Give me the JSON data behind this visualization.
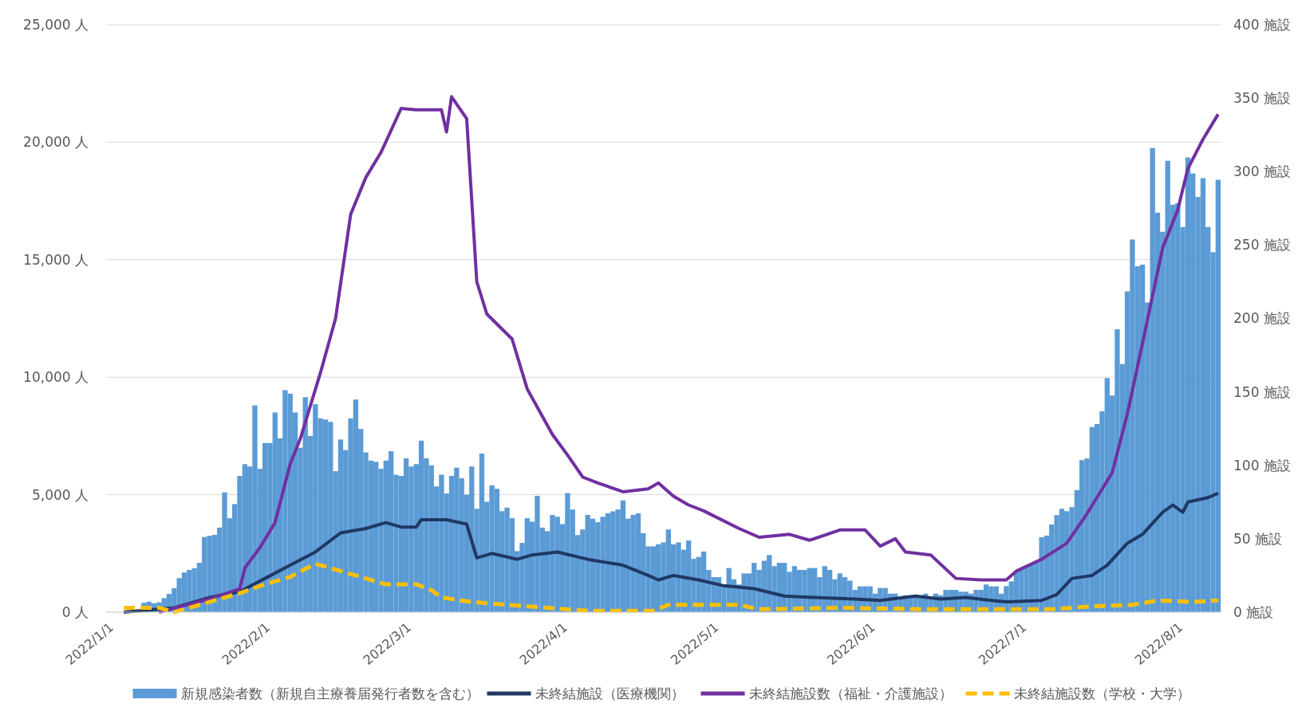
{
  "chart_data": {
    "type": "bar",
    "grid": "y",
    "legend": "bottom",
    "xlim": [
      "2021-12-31T12:00",
      "2022-08-09T12:00"
    ],
    "xticks": [
      {
        "value": "2022-01-01",
        "label": "2022/1/1"
      },
      {
        "value": "2022-02-01",
        "label": "2022/2/1"
      },
      {
        "value": "2022-03-01",
        "label": "2022/3/1"
      },
      {
        "value": "2022-04-01",
        "label": "2022/4/1"
      },
      {
        "value": "2022-05-01",
        "label": "2022/5/1"
      },
      {
        "value": "2022-06-01",
        "label": "2022/6/1"
      },
      {
        "value": "2022-07-01",
        "label": "2022/7/1"
      },
      {
        "value": "2022-08-01",
        "label": "2022/8/1"
      }
    ],
    "ylim": [
      0,
      25000
    ],
    "yticks": [
      {
        "value": 0,
        "label": "0 人"
      },
      {
        "value": 5000,
        "label": "5,000 人"
      },
      {
        "value": 10000,
        "label": "10,000 人"
      },
      {
        "value": 15000,
        "label": "15,000 人"
      },
      {
        "value": 20000,
        "label": "20,000 人"
      },
      {
        "value": 25000,
        "label": "25,000 人"
      }
    ],
    "y2lim": [
      0,
      400
    ],
    "y2ticks": [
      {
        "value": 0,
        "label": "0 施設"
      },
      {
        "value": 50,
        "label": "50 施設"
      },
      {
        "value": 100,
        "label": "100 施設"
      },
      {
        "value": 150,
        "label": "150 施設"
      },
      {
        "value": 200,
        "label": "200 施設"
      },
      {
        "value": 250,
        "label": "250 施設"
      },
      {
        "value": 300,
        "label": "300 施設"
      },
      {
        "value": 350,
        "label": "350 施設"
      },
      {
        "value": 400,
        "label": "400 施設"
      }
    ],
    "x": [
      "2022-01-01",
      "2022-01-02",
      "2022-01-03",
      "2022-01-04",
      "2022-01-05",
      "2022-01-06",
      "2022-01-07",
      "2022-01-08",
      "2022-01-09",
      "2022-01-10",
      "2022-01-11",
      "2022-01-12",
      "2022-01-13",
      "2022-01-14",
      "2022-01-15",
      "2022-01-16",
      "2022-01-17",
      "2022-01-18",
      "2022-01-19",
      "2022-01-20",
      "2022-01-21",
      "2022-01-22",
      "2022-01-23",
      "2022-01-24",
      "2022-01-25",
      "2022-01-26",
      "2022-01-27",
      "2022-01-28",
      "2022-01-29",
      "2022-01-30",
      "2022-01-31",
      "2022-02-01",
      "2022-02-02",
      "2022-02-03",
      "2022-02-04",
      "2022-02-05",
      "2022-02-06",
      "2022-02-07",
      "2022-02-08",
      "2022-02-09",
      "2022-02-10",
      "2022-02-11",
      "2022-02-12",
      "2022-02-13",
      "2022-02-14",
      "2022-02-15",
      "2022-02-16",
      "2022-02-17",
      "2022-02-18",
      "2022-02-19",
      "2022-02-20",
      "2022-02-21",
      "2022-02-22",
      "2022-02-23",
      "2022-02-24",
      "2022-02-25",
      "2022-02-26",
      "2022-02-27",
      "2022-02-28",
      "2022-03-01",
      "2022-03-02",
      "2022-03-03",
      "2022-03-04",
      "2022-03-05",
      "2022-03-06",
      "2022-03-07",
      "2022-03-08",
      "2022-03-09",
      "2022-03-10",
      "2022-03-11",
      "2022-03-12",
      "2022-03-13",
      "2022-03-14",
      "2022-03-15",
      "2022-03-16",
      "2022-03-17",
      "2022-03-18",
      "2022-03-19",
      "2022-03-20",
      "2022-03-21",
      "2022-03-22",
      "2022-03-23",
      "2022-03-24",
      "2022-03-25",
      "2022-03-26",
      "2022-03-27",
      "2022-03-28",
      "2022-03-29",
      "2022-03-30",
      "2022-03-31",
      "2022-04-01",
      "2022-04-02",
      "2022-04-03",
      "2022-04-04",
      "2022-04-05",
      "2022-04-06",
      "2022-04-07",
      "2022-04-08",
      "2022-04-09",
      "2022-04-10",
      "2022-04-11",
      "2022-04-12",
      "2022-04-13",
      "2022-04-14",
      "2022-04-15",
      "2022-04-16",
      "2022-04-17",
      "2022-04-18",
      "2022-04-19",
      "2022-04-20",
      "2022-04-21",
      "2022-04-22",
      "2022-04-23",
      "2022-04-24",
      "2022-04-25",
      "2022-04-26",
      "2022-04-27",
      "2022-04-28",
      "2022-04-29",
      "2022-04-30",
      "2022-05-01",
      "2022-05-02",
      "2022-05-03",
      "2022-05-04",
      "2022-05-05",
      "2022-05-06",
      "2022-05-07",
      "2022-05-08",
      "2022-05-09",
      "2022-05-10",
      "2022-05-11",
      "2022-05-12",
      "2022-05-13",
      "2022-05-14",
      "2022-05-15",
      "2022-05-16",
      "2022-05-17",
      "2022-05-18",
      "2022-05-19",
      "2022-05-20",
      "2022-05-21",
      "2022-05-22",
      "2022-05-23",
      "2022-05-24",
      "2022-05-25",
      "2022-05-26",
      "2022-05-27",
      "2022-05-28",
      "2022-05-29",
      "2022-05-30",
      "2022-05-31",
      "2022-06-01",
      "2022-06-02",
      "2022-06-03",
      "2022-06-04",
      "2022-06-05",
      "2022-06-06",
      "2022-06-07",
      "2022-06-08",
      "2022-06-09",
      "2022-06-10",
      "2022-06-11",
      "2022-06-12",
      "2022-06-13",
      "2022-06-14",
      "2022-06-15",
      "2022-06-16",
      "2022-06-17",
      "2022-06-18",
      "2022-06-19",
      "2022-06-20",
      "2022-06-21",
      "2022-06-22",
      "2022-06-23",
      "2022-06-24",
      "2022-06-25",
      "2022-06-26",
      "2022-06-27",
      "2022-06-28",
      "2022-06-29",
      "2022-06-30",
      "2022-07-01",
      "2022-07-02",
      "2022-07-03",
      "2022-07-04",
      "2022-07-05",
      "2022-07-06",
      "2022-07-07",
      "2022-07-08",
      "2022-07-09",
      "2022-07-10",
      "2022-07-11",
      "2022-07-12",
      "2022-07-13",
      "2022-07-14",
      "2022-07-15",
      "2022-07-16",
      "2022-07-17",
      "2022-07-18",
      "2022-07-19",
      "2022-07-20",
      "2022-07-21",
      "2022-07-22",
      "2022-07-23",
      "2022-07-24",
      "2022-07-25",
      "2022-07-26",
      "2022-07-27",
      "2022-07-28",
      "2022-07-29",
      "2022-07-30",
      "2022-07-31",
      "2022-08-01",
      "2022-08-02",
      "2022-08-03",
      "2022-08-04",
      "2022-08-05",
      "2022-08-06",
      "2022-08-07",
      "2022-08-08",
      "2022-08-09"
    ],
    "series": [
      {
        "name": "新規感染者数（新規自主療養届発行者数を含む）",
        "color": "#5b9bd5",
        "values": [
          0,
          0,
          0,
          0,
          0,
          null,
          null,
          400,
          450,
          380,
          420,
          600,
          780,
          1020,
          1450,
          1690,
          1800,
          1870,
          2100,
          3200,
          3250,
          3290,
          3600,
          5100,
          4000,
          4600,
          5800,
          6300,
          6200,
          8800,
          6100,
          7200,
          7200,
          8500,
          7400,
          9450,
          9300,
          8500,
          7000,
          9150,
          7500,
          8850,
          8250,
          8200,
          8100,
          6000,
          7350,
          6900,
          8250,
          9050,
          7800,
          6800,
          6450,
          6400,
          6100,
          6450,
          6850,
          5850,
          5800,
          6550,
          6200,
          6300,
          7300,
          6550,
          6250,
          5350,
          5850,
          5050,
          5800,
          6150,
          5700,
          5000,
          6200,
          4400,
          6750,
          4700,
          5400,
          5250,
          4300,
          4450,
          4000,
          2600,
          2950,
          4000,
          3850,
          4950,
          3600,
          3450,
          4140,
          4060,
          3750,
          5070,
          4370,
          3280,
          3520,
          4140,
          3980,
          3830,
          4060,
          4210,
          4290,
          4370,
          4760,
          3980,
          4140,
          4210,
          3360,
          2800,
          2800,
          2890,
          2970,
          3520,
          2890,
          2970,
          2660,
          3050,
          2270,
          2350,
          2580,
          1800,
          1490,
          1490,
          1100,
          1880,
          1400,
          1180,
          1650,
          1650,
          2100,
          1800,
          2190,
          2430,
          1960,
          2100,
          2100,
          1720,
          1960,
          1800,
          1800,
          1880,
          1880,
          1490,
          1960,
          1800,
          1400,
          1650,
          1490,
          1340,
          950,
          1100,
          1100,
          1100,
          790,
          1030,
          1030,
          790,
          790,
          640,
          720,
          720,
          640,
          720,
          790,
          640,
          790,
          720,
          950,
          950,
          950,
          870,
          870,
          790,
          950,
          950,
          1180,
          1100,
          1100,
          790,
          1110,
          1310,
          1720,
          1850,
          1980,
          2050,
          2180,
          3190,
          3260,
          3730,
          4130,
          4400,
          4300,
          4470,
          5200,
          6470,
          6540,
          7880,
          8010,
          8550,
          9960,
          9220,
          12040,
          10560,
          13650,
          15860,
          14720,
          14790,
          13180,
          19750,
          17000,
          16190,
          19210,
          17340,
          17400,
          16390,
          19350,
          18670,
          17670,
          18470,
          16390,
          15320,
          18400
        ]
      },
      {
        "name": "未終結施設（医療機関）",
        "type": "line",
        "axis": "y2",
        "color": "#203864",
        "x": [
          "2022-01-04",
          "2022-01-14",
          "2022-01-21",
          "2022-01-27",
          "2022-02-01",
          "2022-02-06",
          "2022-02-11",
          "2022-02-16",
          "2022-02-21",
          "2022-02-25",
          "2022-02-28",
          "2022-03-03",
          "2022-03-04",
          "2022-03-09",
          "2022-03-13",
          "2022-03-15",
          "2022-03-18",
          "2022-03-23",
          "2022-03-26",
          "2022-03-31",
          "2022-04-06",
          "2022-04-13",
          "2022-04-18",
          "2022-04-20",
          "2022-04-23",
          "2022-04-28",
          "2022-05-03",
          "2022-05-09",
          "2022-05-15",
          "2022-05-21",
          "2022-05-29",
          "2022-06-03",
          "2022-06-10",
          "2022-06-15",
          "2022-06-20",
          "2022-06-25",
          "2022-06-28",
          "2022-07-05",
          "2022-07-08",
          "2022-07-11",
          "2022-07-15",
          "2022-07-18",
          "2022-07-22",
          "2022-07-25",
          "2022-07-29",
          "2022-07-31",
          "2022-08-02",
          "2022-08-03",
          "2022-08-07",
          "2022-08-09"
        ],
        "values": [
          0,
          3,
          10,
          14,
          23,
          32,
          41,
          54,
          57,
          61,
          58,
          58,
          63,
          63,
          60,
          37,
          40,
          36,
          39,
          41,
          36,
          32,
          25,
          22,
          25,
          22,
          18,
          16,
          11,
          10,
          9,
          8,
          11,
          9,
          10,
          8,
          7,
          8,
          12,
          23,
          25,
          32,
          47,
          53,
          68,
          73,
          68,
          75,
          78,
          81
        ]
      },
      {
        "name": "未終結施設数（福祉・介護施設）",
        "type": "line",
        "axis": "y2",
        "color": "#7030a0",
        "x": [
          "2022-01-11",
          "2022-01-21",
          "2022-01-27",
          "2022-01-28",
          "2022-01-31",
          "2022-02-03",
          "2022-02-06",
          "2022-02-08",
          "2022-02-12",
          "2022-02-15",
          "2022-02-18",
          "2022-02-21",
          "2022-02-24",
          "2022-02-28",
          "2022-03-03",
          "2022-03-08",
          "2022-03-09",
          "2022-03-10",
          "2022-03-13",
          "2022-03-15",
          "2022-03-17",
          "2022-03-22",
          "2022-03-25",
          "2022-03-30",
          "2022-04-02",
          "2022-04-05",
          "2022-04-08",
          "2022-04-13",
          "2022-04-18",
          "2022-04-20",
          "2022-04-23",
          "2022-04-26",
          "2022-04-29",
          "2022-05-06",
          "2022-05-10",
          "2022-05-16",
          "2022-05-20",
          "2022-05-26",
          "2022-05-31",
          "2022-06-03",
          "2022-06-06",
          "2022-06-08",
          "2022-06-13",
          "2022-06-18",
          "2022-06-23",
          "2022-06-28",
          "2022-06-30",
          "2022-07-05",
          "2022-07-10",
          "2022-07-14",
          "2022-07-19",
          "2022-07-22",
          "2022-07-25",
          "2022-07-29",
          "2022-08-01",
          "2022-08-03",
          "2022-08-06",
          "2022-08-09"
        ],
        "values": [
          0,
          9,
          16,
          30,
          44,
          61,
          101,
          118,
          163,
          200,
          271,
          296,
          313,
          343,
          342,
          342,
          327,
          351,
          336,
          225,
          203,
          186,
          152,
          121,
          107,
          92,
          88,
          82,
          84,
          88,
          79,
          73,
          69,
          57,
          51,
          53,
          49,
          56,
          56,
          45,
          50,
          41,
          39,
          23,
          22,
          22,
          28,
          36,
          47,
          67,
          95,
          135,
          183,
          248,
          274,
          302,
          322,
          339
        ]
      },
      {
        "name": "未終結施設数（学校・大学）",
        "type": "line",
        "axis": "y2",
        "color": "#ffc000",
        "line_style": "dashed",
        "x": [
          "2022-01-04",
          "2022-01-11",
          "2022-01-14",
          "2022-01-21",
          "2022-01-27",
          "2022-02-01",
          "2022-02-06",
          "2022-02-11",
          "2022-02-16",
          "2022-02-21",
          "2022-02-25",
          "2022-03-03",
          "2022-03-06",
          "2022-03-08",
          "2022-03-14",
          "2022-03-21",
          "2022-03-29",
          "2022-04-06",
          "2022-04-19",
          "2022-04-22",
          "2022-05-06",
          "2022-05-10",
          "2022-05-26",
          "2022-06-12",
          "2022-07-07",
          "2022-07-15",
          "2022-07-23",
          "2022-07-28",
          "2022-08-04",
          "2022-08-09"
        ],
        "values": [
          3,
          3,
          0,
          7,
          13,
          19,
          24,
          33,
          28,
          23,
          19,
          19,
          15,
          10,
          7,
          5,
          3,
          1,
          1,
          5,
          5,
          2,
          3,
          2,
          2,
          4,
          5,
          8,
          7,
          8
        ]
      }
    ]
  }
}
